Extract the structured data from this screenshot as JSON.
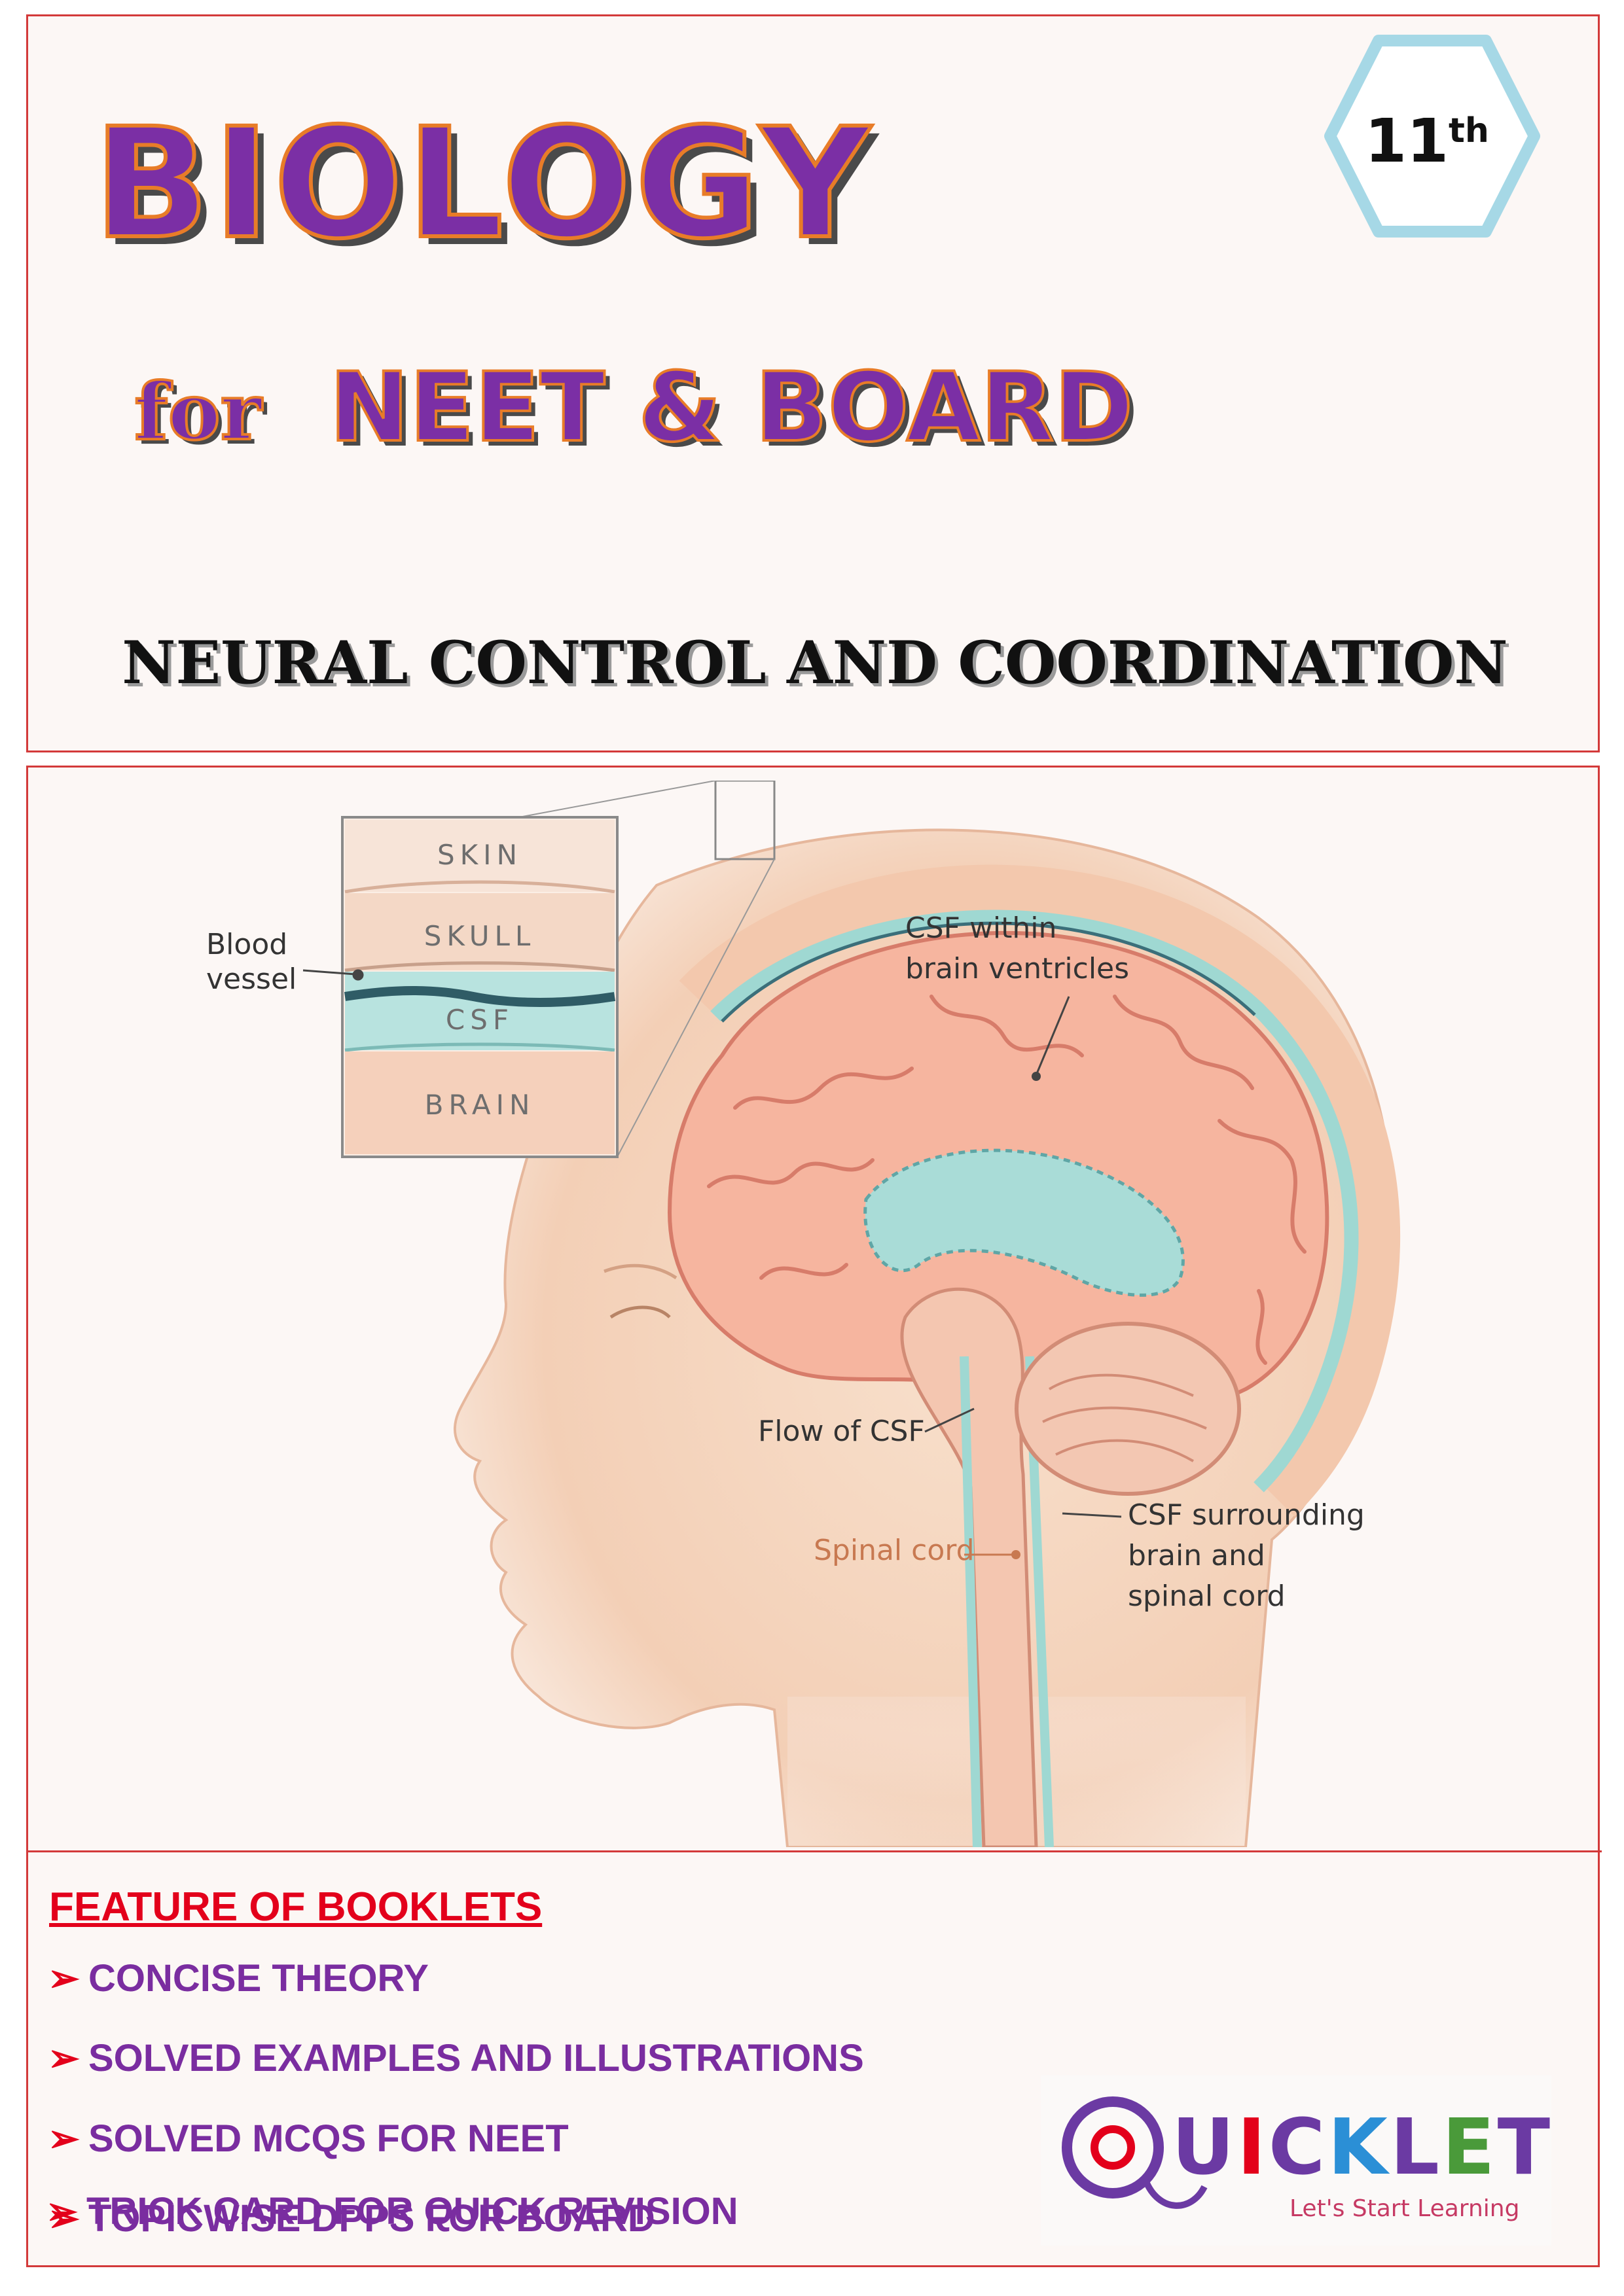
{
  "header": {
    "title": "BIOLOGY",
    "subtitle_for": "for",
    "subtitle_exam": "NEET & BOARD",
    "chapter": "NEURAL CONTROL AND COORDINATION",
    "grade": "11",
    "grade_suffix": "th"
  },
  "illustration": {
    "inset_labels": {
      "skin": "SKIN",
      "skull": "SKULL",
      "csf": "CSF",
      "brain": "BRAIN"
    },
    "blood_vessel_line1": "Blood",
    "blood_vessel_line2": "vessel",
    "csf_ventricles_line1": "CSF within",
    "csf_ventricles_line2": "brain ventricles",
    "flow_label": "Flow of CSF",
    "spinal_label": "Spinal cord",
    "surround_line1": "CSF surrounding",
    "surround_line2": "brain and",
    "surround_line3": "spinal cord"
  },
  "features": {
    "heading": "FEATURE OF BOOKLETS",
    "items": [
      "CONCISE THEORY",
      "SOLVED EXAMPLES AND ILLUSTRATIONS",
      "SOLVED MCQS FOR NEET",
      "TOPICWISE DPPS FOR BOARD",
      "TRICK CARD FOR QUICK REVISION"
    ]
  },
  "logo": {
    "brand": "QUICKLET",
    "tagline": "Let's Start Learning"
  },
  "colors": {
    "title_purple": "#7b2fa5",
    "title_orange": "#e87c28",
    "border_red": "#d33a3a",
    "heading_red": "#e3001b",
    "hex_teal": "#a6d8e6"
  }
}
